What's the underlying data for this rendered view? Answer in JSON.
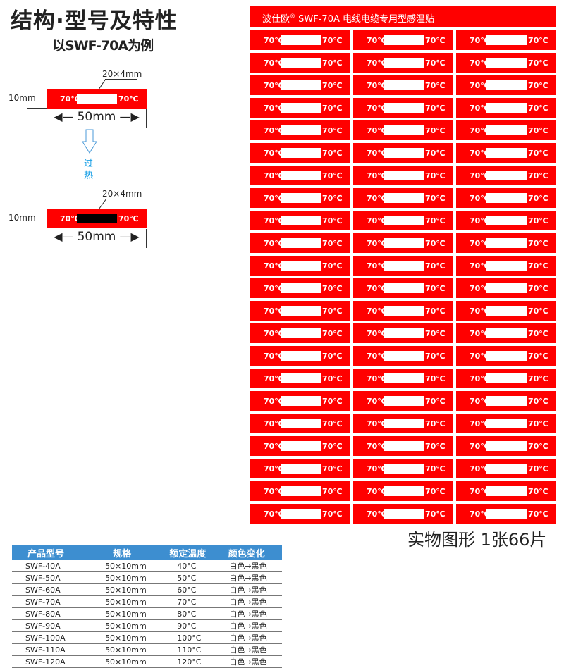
{
  "title": "结构·型号及特性",
  "subtitle": "以SWF-70A为例",
  "diagram": {
    "window_size": "20×4mm",
    "height": "10mm",
    "width": "50mm",
    "label": "70℃",
    "transition": [
      "过",
      "热"
    ],
    "transition_color": "#1aa0e6"
  },
  "sheet": {
    "brand": "波仕欧",
    "registered": "®",
    "header_text": "SWF-70A 电线电缆专用型感温贴",
    "sticker_label": "70℃",
    "rows": 22,
    "columns": 3,
    "caption": "实物图形  1张66片",
    "color": "#ff0000"
  },
  "table": {
    "headers": [
      "产品型号",
      "规格",
      "额定温度",
      "颜色变化"
    ],
    "rows": [
      [
        "SWF-40A",
        "50×10mm",
        "40°C",
        "白色→黑色"
      ],
      [
        "SWF-50A",
        "50×10mm",
        "50°C",
        "白色→黑色"
      ],
      [
        "SWF-60A",
        "50×10mm",
        "60°C",
        "白色→黑色"
      ],
      [
        "SWF-70A",
        "50×10mm",
        "70°C",
        "白色→黑色"
      ],
      [
        "SWF-80A",
        "50×10mm",
        "80°C",
        "白色→黑色"
      ],
      [
        "SWF-90A",
        "50×10mm",
        "90°C",
        "白色→黑色"
      ],
      [
        "SWF-100A",
        "50×10mm",
        "100°C",
        "白色→黑色"
      ],
      [
        "SWF-110A",
        "50×10mm",
        "110°C",
        "白色→黑色"
      ],
      [
        "SWF-120A",
        "50×10mm",
        "120°C",
        "白色→黑色"
      ]
    ],
    "header_color": "#3d8ed0"
  }
}
